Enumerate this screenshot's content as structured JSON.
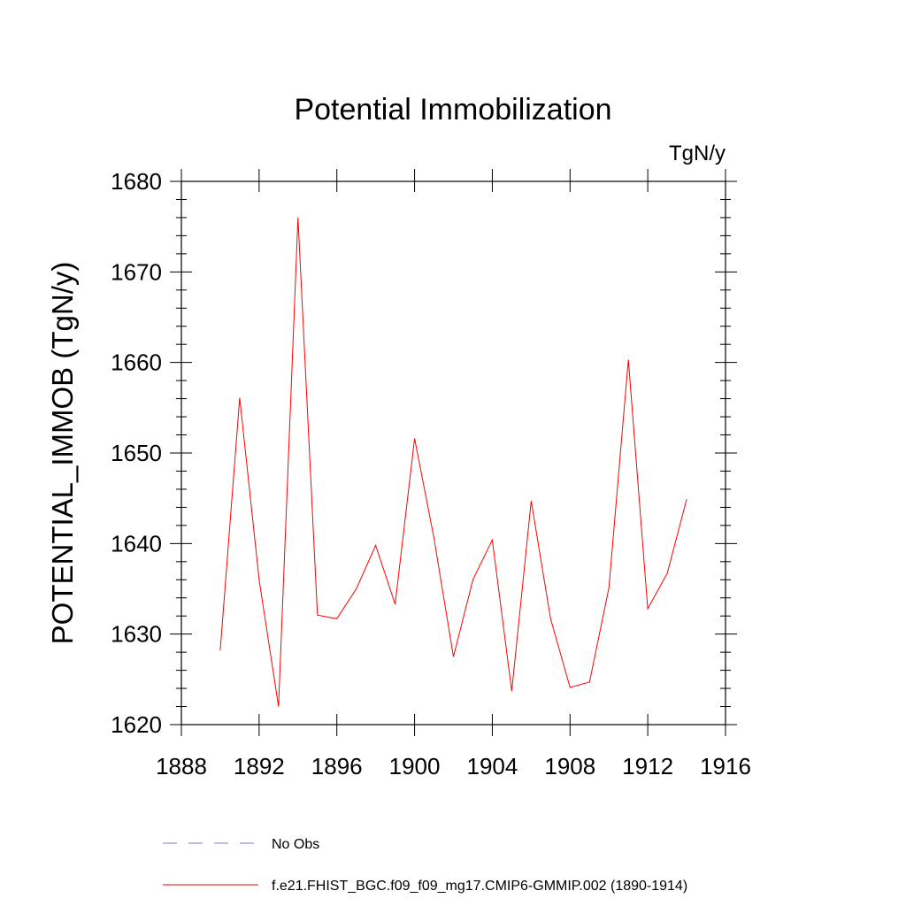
{
  "chart_data": {
    "type": "line",
    "title": "Potential Immobilization",
    "units_label": "TgN/y",
    "ylabel": "POTENTIAL_IMMOB  (TgN/y)",
    "xlabel": "",
    "xlim": [
      1888,
      1916
    ],
    "ylim": [
      1620,
      1680
    ],
    "x_ticks": [
      1888,
      1892,
      1896,
      1900,
      1904,
      1908,
      1912,
      1916
    ],
    "y_ticks": [
      1620,
      1630,
      1640,
      1650,
      1660,
      1670,
      1680
    ],
    "grid": false,
    "series": [
      {
        "name": "f.e21.FHIST_BGC.f09_f09_mg17.CMIP6-GMMIP.002 (1890-1914)",
        "color": "#ff0000",
        "style": "solid",
        "x": [
          1890,
          1891,
          1892,
          1893,
          1894,
          1895,
          1896,
          1897,
          1898,
          1899,
          1900,
          1901,
          1902,
          1903,
          1904,
          1905,
          1906,
          1907,
          1908,
          1909,
          1910,
          1911,
          1912,
          1913,
          1914
        ],
        "values": [
          1628.2,
          1656.1,
          1636.0,
          1622.0,
          1676.0,
          1632.1,
          1631.7,
          1635.0,
          1639.8,
          1633.3,
          1651.6,
          1640.6,
          1627.5,
          1636.0,
          1640.4,
          1623.7,
          1644.7,
          1631.7,
          1624.1,
          1624.7,
          1635.1,
          1660.3,
          1632.8,
          1636.7,
          1644.9
        ]
      }
    ],
    "legend": [
      {
        "label": "No Obs",
        "color": "#7b7bcf",
        "style": "dashed"
      },
      {
        "label": "f.e21.FHIST_BGC.f09_f09_mg17.CMIP6-GMMIP.002 (1890-1914)",
        "color": "#ff0000",
        "style": "solid"
      }
    ]
  }
}
